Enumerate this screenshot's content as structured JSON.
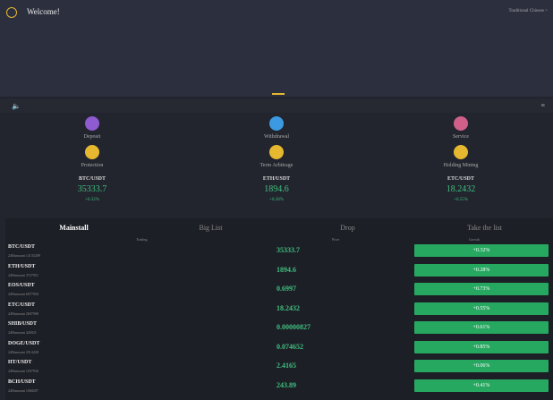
{
  "header": {
    "title": "Welcome!",
    "language": "Traditional Chinese"
  },
  "menu": [
    "Deposit",
    "Withdrawal",
    "Service",
    "Protection",
    "Term Arbitrage",
    "Holding Mining"
  ],
  "tickers": [
    {
      "pair": "BTC/USDT",
      "price": "35333.7",
      "change": "+0.32%"
    },
    {
      "pair": "ETH/USDT",
      "price": "1894.6",
      "change": "+0.28%"
    },
    {
      "pair": "ETC/USDT",
      "price": "18.2432",
      "change": "+0.55%"
    }
  ],
  "tabs": [
    "Mainstall",
    "Big List",
    "Drop",
    "Take the list"
  ],
  "columns": [
    "Trading",
    "Price",
    "Growth"
  ],
  "rows": [
    {
      "pair": "BTC/USDT",
      "volume": "24Hamount 14133209",
      "price": "35333.7",
      "change": "+0.32%"
    },
    {
      "pair": "ETH/USDT",
      "volume": "24Hamount 3727951",
      "price": "1894.6",
      "change": "+0.28%"
    },
    {
      "pair": "EOS/USDT",
      "volume": "24Hamount 6077950",
      "price": "0.6997",
      "change": "+0.73%"
    },
    {
      "pair": "ETC/USDT",
      "volume": "24Hamount 2697908",
      "price": "18.2432",
      "change": "+0.55%"
    },
    {
      "pair": "SHIB/USDT",
      "volume": "24Hamount 426921",
      "price": "0.00000827",
      "change": "+0.61%"
    },
    {
      "pair": "DOGE/USDT",
      "volume": "24Hamount 2914438",
      "price": "0.074652",
      "change": "+0.85%"
    },
    {
      "pair": "HT/USDT",
      "volume": "24Hamount 1037936",
      "price": "2.4165",
      "change": "+0.06%"
    },
    {
      "pair": "BCH/USDT",
      "volume": "24Hamount 1068207",
      "price": "243.89",
      "change": "+0.41%"
    }
  ]
}
